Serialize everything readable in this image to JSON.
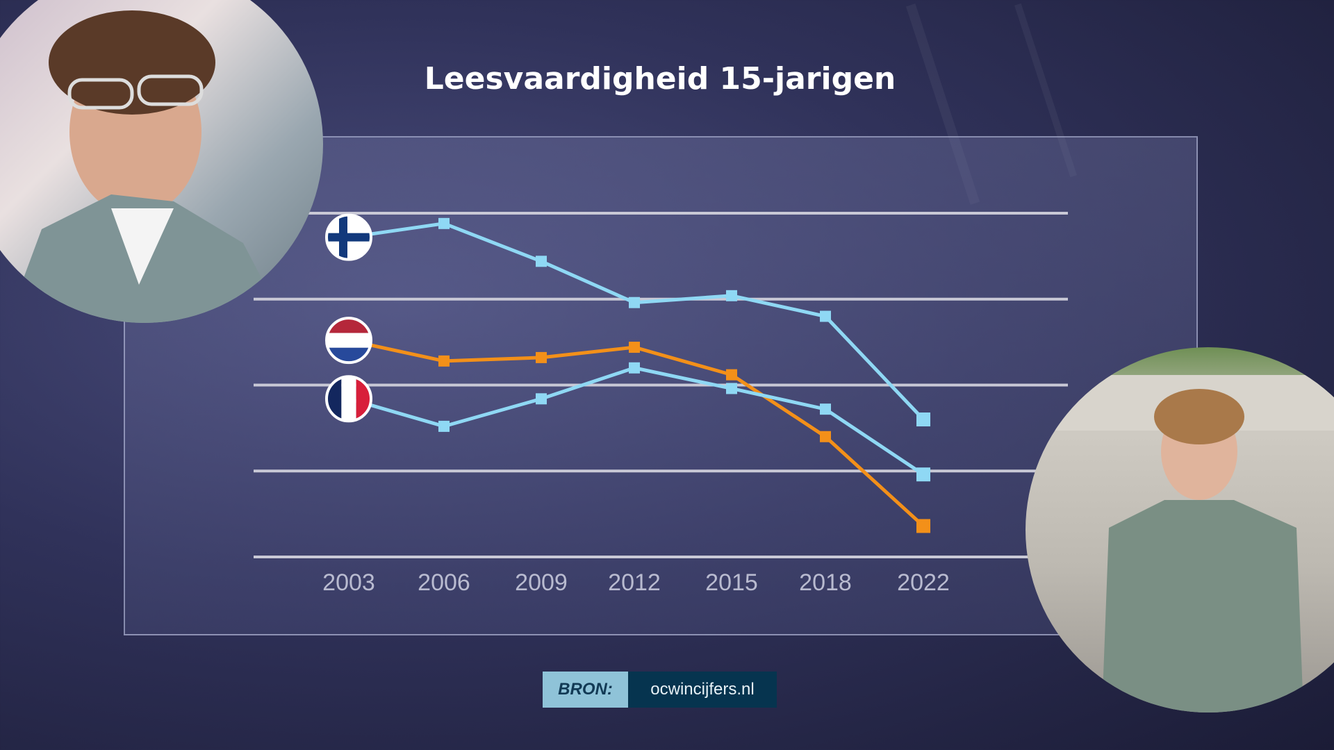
{
  "title": "Leesvaardigheid 15-jarigen",
  "source": {
    "label": "BRON:",
    "value": "ocwincijfers.nl"
  },
  "chart_data": {
    "type": "line",
    "title": "Leesvaardigheid 15-jarigen",
    "categories": [
      "2003",
      "2006",
      "2009",
      "2012",
      "2015",
      "2018",
      "2022"
    ],
    "series": [
      {
        "flag": "finland",
        "color": "#8fd8f4",
        "values": [
          543,
          547,
          536,
          524,
          526,
          520,
          490
        ]
      },
      {
        "flag": "netherlands",
        "color": "#f39019",
        "values": [
          513,
          507,
          508,
          511,
          503,
          485,
          459
        ]
      },
      {
        "flag": "france",
        "color": "#8fd8f4",
        "values": [
          496,
          488,
          496,
          505,
          499,
          493,
          474
        ]
      }
    ],
    "ylim": [
      450,
      550
    ],
    "grid_values": [
      450,
      475,
      500,
      525,
      550
    ],
    "grid": true,
    "legend": "flags at line start",
    "xlabel": "",
    "ylabel": ""
  }
}
